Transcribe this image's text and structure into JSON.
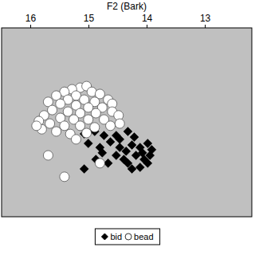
{
  "chart_data": {
    "type": "scatter",
    "x_label": "F2 (Bark)",
    "xlim": [
      16.5,
      12.2
    ],
    "xticks": [
      16,
      15,
      14,
      13
    ],
    "ylim": [
      7,
      1
    ],
    "tick_labels": "x",
    "grid": false,
    "legend": "bottom",
    "series": [
      {
        "name": "bid",
        "color": "#000000",
        "marker": "diamond",
        "x": [
          15.08,
          14.9,
          14.74,
          14.53,
          14.33,
          15.01,
          14.81,
          14.63,
          14.47,
          14.26,
          14.12,
          13.99,
          13.92,
          14.36,
          14.19,
          14.05,
          14.4,
          14.53,
          14.12,
          14.26,
          13.99,
          14.88,
          15.08,
          14.67,
          14.47,
          14.22,
          14.77,
          14.08,
          13.95,
          14.33
        ],
        "values": [
          4.37,
          4.29,
          4.42,
          4.42,
          4.29,
          4.67,
          4.8,
          4.62,
          4.8,
          4.72,
          4.8,
          4.67,
          4.87,
          4.92,
          5.05,
          5.18,
          5.18,
          5.05,
          5.43,
          5.48,
          5.3,
          5.18,
          5.48,
          5.3,
          4.54,
          4.47,
          4.97,
          4.97,
          5.05,
          5.3
        ]
      },
      {
        "name": "bead",
        "color": "#ffffff",
        "marker": "circle",
        "x": [
          15.15,
          15.04,
          15.29,
          15.42,
          14.95,
          15.22,
          15.56,
          14.81,
          15.36,
          15.08,
          14.9,
          14.67,
          15.7,
          15.49,
          15.22,
          15.01,
          14.77,
          14.6,
          15.63,
          15.36,
          15.15,
          14.88,
          14.6,
          15.77,
          15.49,
          15.26,
          15.01,
          14.74,
          14.49,
          15.86,
          15.67,
          15.42,
          15.15,
          14.9,
          14.63,
          15.81,
          15.56,
          15.32,
          15.04,
          15.9,
          15.7,
          14.81,
          15.42,
          14.47,
          15.22
        ],
        "values": [
          2.9,
          2.85,
          2.95,
          3.03,
          3.03,
          3.15,
          3.15,
          3.1,
          3.28,
          3.28,
          3.35,
          3.28,
          3.35,
          3.41,
          3.46,
          3.53,
          3.53,
          3.41,
          3.61,
          3.66,
          3.71,
          3.71,
          3.66,
          3.78,
          3.86,
          3.91,
          3.91,
          3.91,
          3.78,
          3.96,
          4.04,
          4.11,
          4.11,
          4.16,
          4.11,
          4.22,
          4.29,
          4.37,
          4.34,
          4.11,
          5.05,
          5.3,
          5.73,
          4.04,
          4.54
        ]
      }
    ]
  }
}
